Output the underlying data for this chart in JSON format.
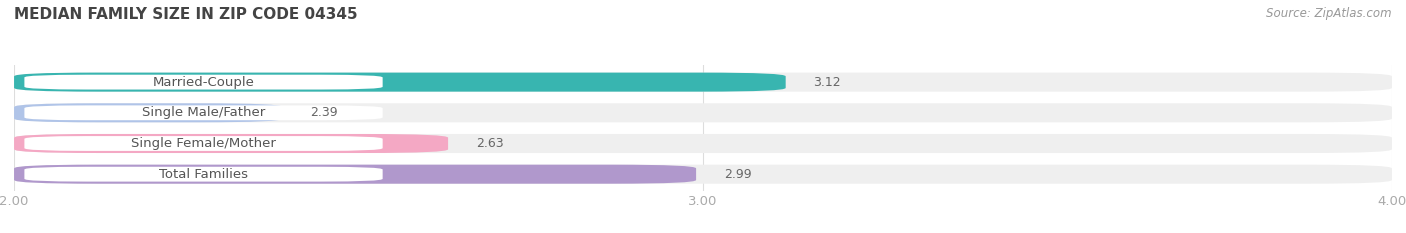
{
  "title": "MEDIAN FAMILY SIZE IN ZIP CODE 04345",
  "source": "Source: ZipAtlas.com",
  "categories": [
    "Married-Couple",
    "Single Male/Father",
    "Single Female/Mother",
    "Total Families"
  ],
  "values": [
    3.12,
    2.39,
    2.63,
    2.99
  ],
  "colors": [
    "#38b5b0",
    "#b0c4e8",
    "#f4a8c4",
    "#b098cc"
  ],
  "bar_bg_color": "#efefef",
  "xlim_min": 2.0,
  "xlim_max": 4.0,
  "xticks": [
    2.0,
    3.0,
    4.0
  ],
  "xtick_labels": [
    "2.00",
    "3.00",
    "4.00"
  ],
  "background_color": "#ffffff",
  "bar_height": 0.62,
  "bar_gap": 1.0,
  "title_fontsize": 11,
  "label_fontsize": 9.5,
  "value_fontsize": 9,
  "source_fontsize": 8.5,
  "label_box_color": "#ffffff",
  "label_text_color": "#555555",
  "value_text_color": "#666666",
  "xtick_color": "#aaaaaa",
  "grid_color": "#dddddd"
}
